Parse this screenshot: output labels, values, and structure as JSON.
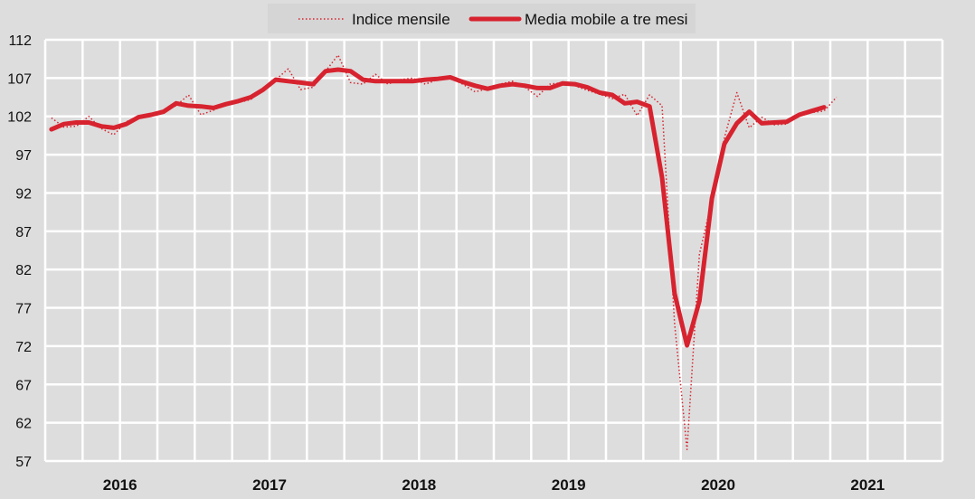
{
  "chart_data": {
    "type": "line",
    "title": "",
    "xlabel": "",
    "ylabel": "",
    "ylim": [
      57,
      112
    ],
    "yticks": [
      "112",
      "107",
      "102",
      "97",
      "92",
      "87",
      "82",
      "77",
      "72",
      "67",
      "62",
      "57"
    ],
    "ytick_values": [
      112,
      107,
      102,
      97,
      92,
      87,
      82,
      77,
      72,
      67,
      62,
      57
    ],
    "xlim_years": [
      2016,
      2021
    ],
    "year_labels": [
      "2016",
      "2017",
      "2018",
      "2019",
      "2020",
      "2021"
    ],
    "x_start": "2016-01",
    "frequency": "monthly",
    "grid": true,
    "legend_position": "top-center",
    "colors": {
      "background": "#dddddd",
      "grid": "#ffffff",
      "legend_bg": "#d5d5d5",
      "series": "#d7232f"
    },
    "series": [
      {
        "name": "Indice mensile",
        "style": "dotted",
        "values": [
          101.8,
          100.6,
          100.7,
          102.0,
          100.4,
          99.6,
          101.3,
          102.0,
          102.2,
          102.6,
          103.4,
          104.8,
          102.2,
          102.8,
          103.6,
          103.8,
          104.2,
          105.6,
          106.8,
          108.2,
          105.5,
          105.8,
          107.9,
          110.0,
          106.4,
          106.2,
          107.5,
          106.2,
          106.8,
          107.0,
          106.2,
          106.8,
          107.0,
          106.2,
          105.2,
          105.6,
          106.2,
          106.6,
          105.8,
          104.6,
          106.2,
          106.4,
          106.0,
          105.4,
          104.9,
          104.3,
          104.9,
          102.1,
          104.8,
          103.4,
          75.0,
          58.5,
          84.0,
          91.0,
          99.2,
          105.1,
          100.5,
          101.9,
          100.9,
          101.0,
          102.3,
          102.5,
          102.7,
          104.5
        ]
      },
      {
        "name": "Media mobile a tre mesi",
        "style": "solid",
        "values": [
          100.3,
          101.0,
          101.2,
          101.2,
          100.7,
          100.5,
          101.0,
          101.9,
          102.2,
          102.6,
          103.7,
          103.4,
          103.3,
          103.1,
          103.6,
          104.0,
          104.5,
          105.5,
          106.8,
          106.6,
          106.4,
          106.2,
          107.9,
          108.1,
          107.9,
          106.8,
          106.6,
          106.6,
          106.6,
          106.6,
          106.8,
          106.9,
          107.1,
          106.5,
          106.0,
          105.6,
          106.0,
          106.2,
          106.0,
          105.7,
          105.7,
          106.3,
          106.2,
          105.8,
          105.1,
          104.8,
          103.7,
          103.9,
          103.3,
          94.0,
          78.9,
          72.1,
          77.9,
          91.3,
          98.4,
          101.1,
          102.6,
          101.1,
          101.2,
          101.3,
          102.2,
          102.7,
          103.2
        ]
      }
    ]
  }
}
